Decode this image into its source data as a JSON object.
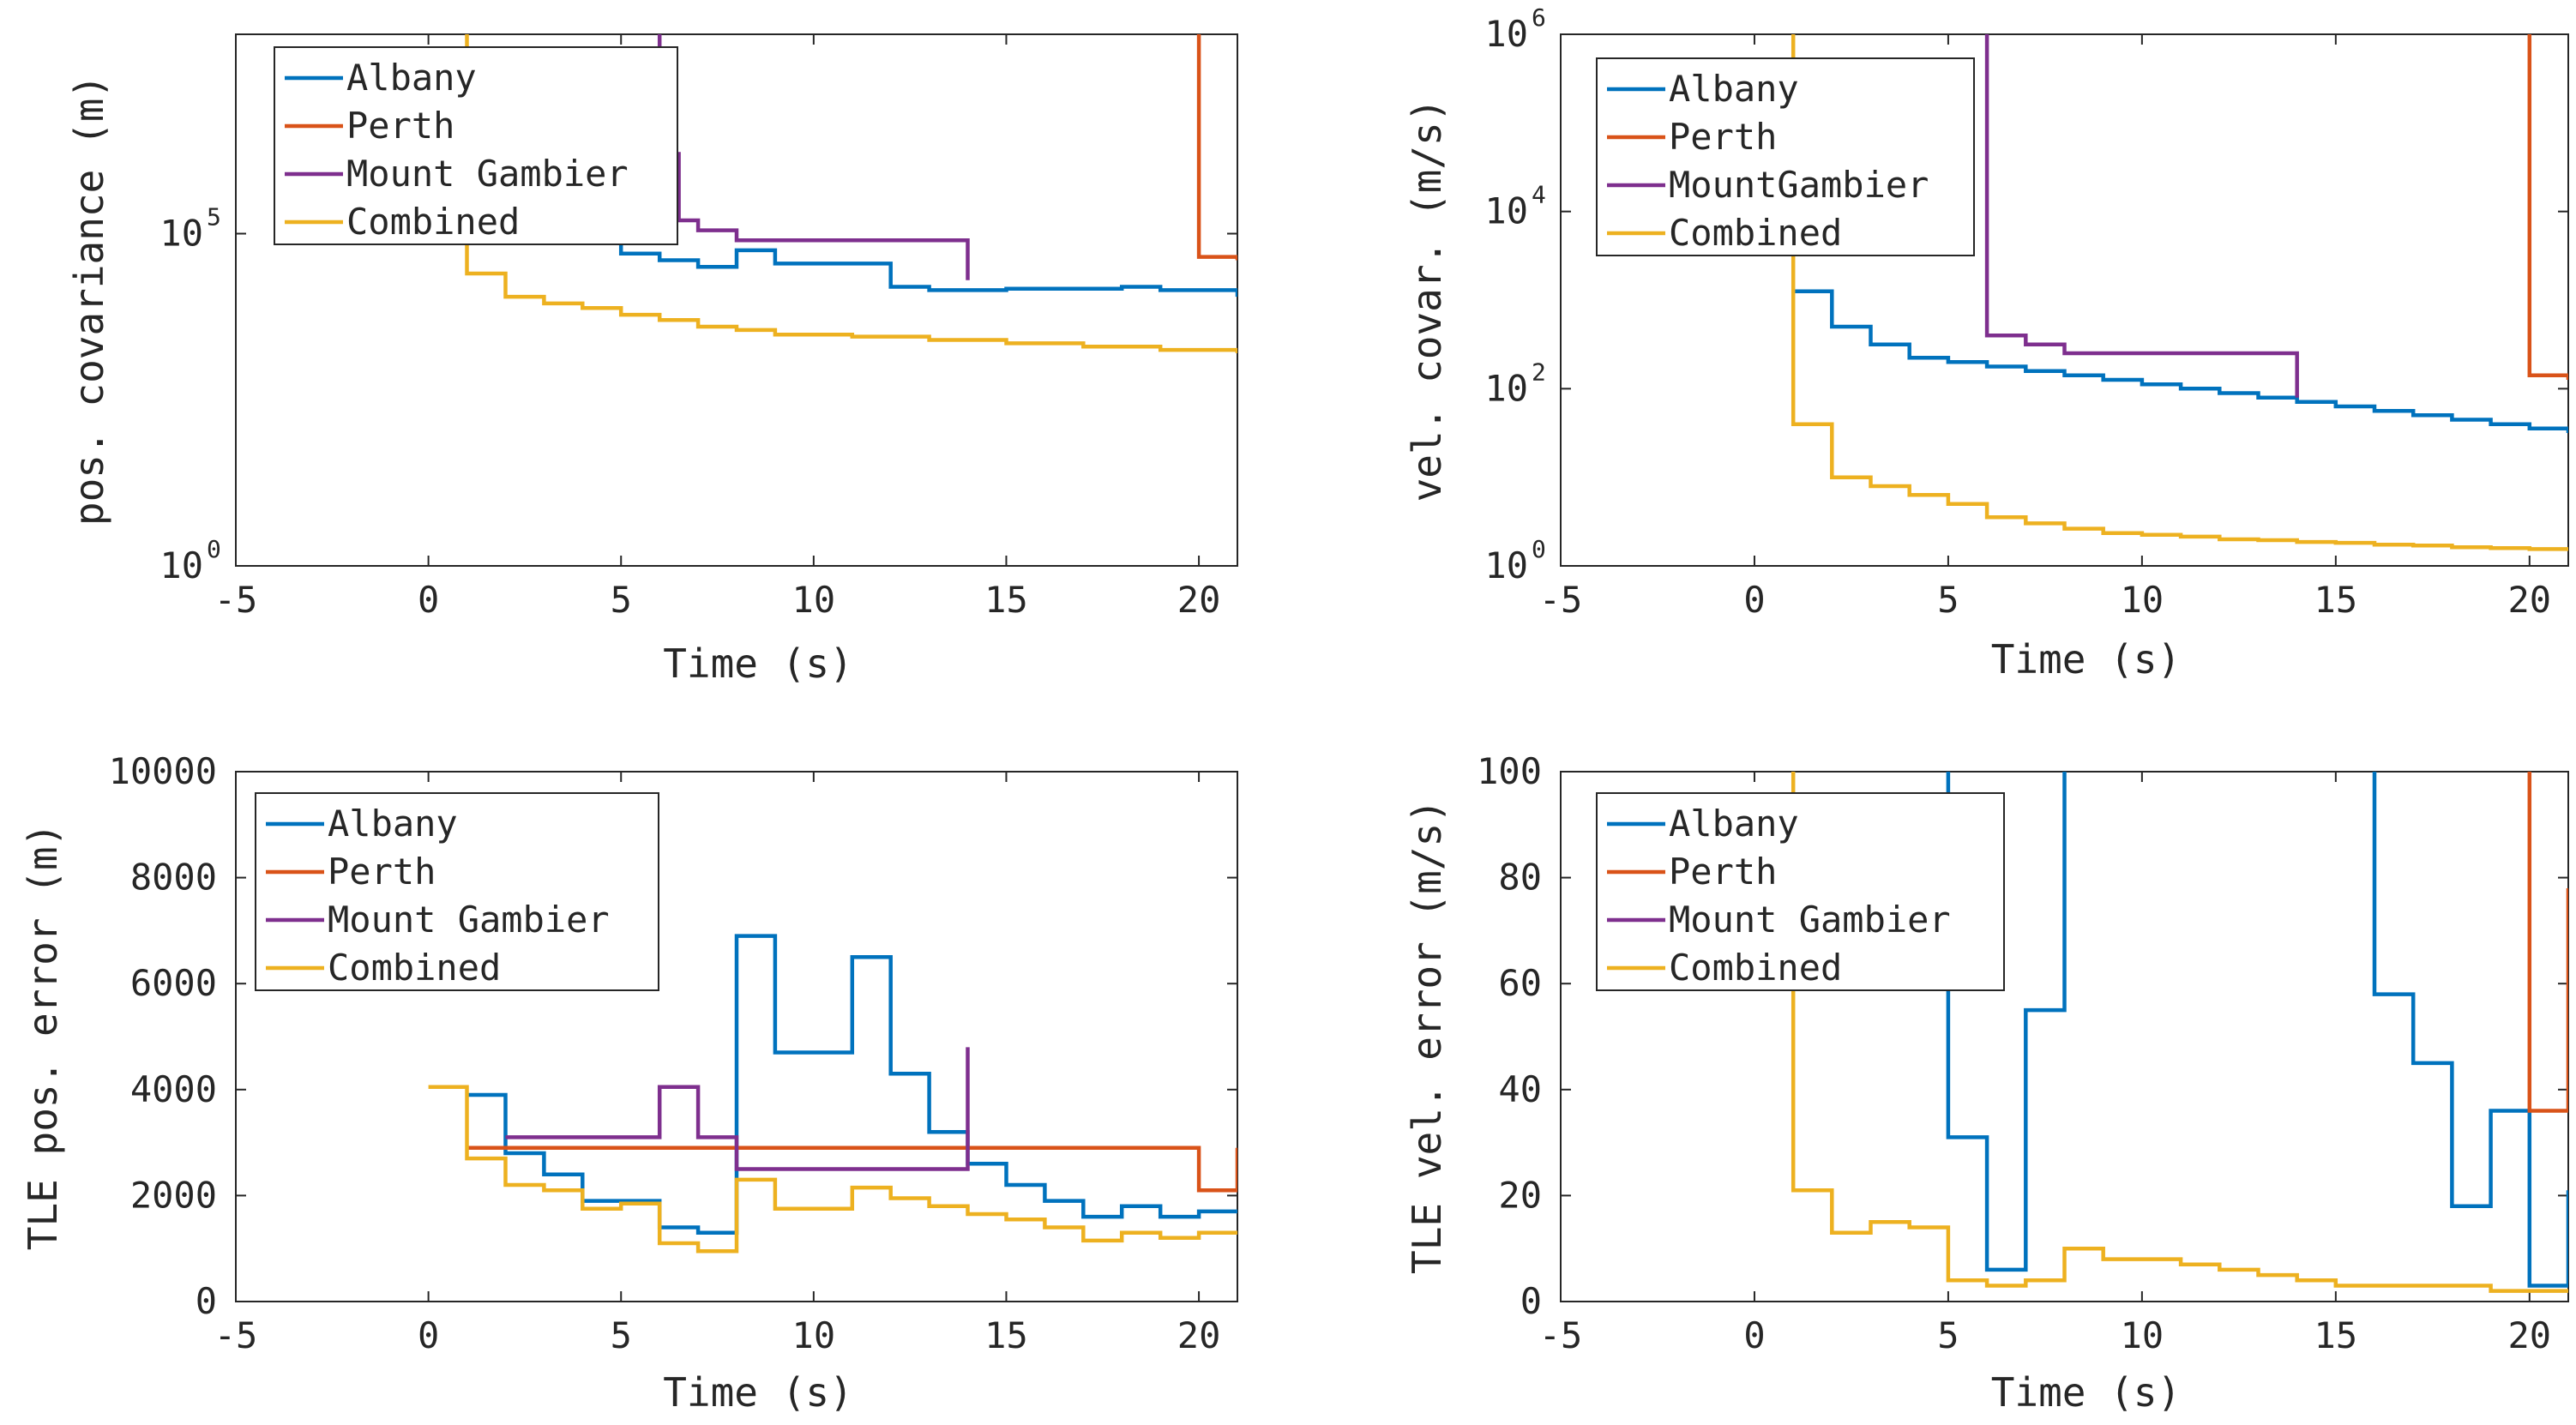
{
  "colors": {
    "albany": "#0072BD",
    "perth": "#D95319",
    "gambier": "#7E2F8E",
    "combined": "#EDB120"
  },
  "chart_data": [
    {
      "type": "line",
      "step": true,
      "yscale": "log",
      "xlabel": "Time (s)",
      "ylabel": "pos. covariance (m)",
      "xlim": [
        -5,
        21
      ],
      "ylim_log10": [
        0,
        8
      ],
      "xticks": [
        "-5",
        "0",
        "5",
        "10",
        "15",
        "20"
      ],
      "yticks": [
        {
          "base": "10",
          "exp": "0"
        },
        {
          "base": "10",
          "exp": "5"
        }
      ],
      "legend": [
        "Albany",
        "Perth",
        "Mount Gambier",
        "Combined"
      ],
      "series": [
        {
          "name": "Albany",
          "color": "albany",
          "points": [
            [
              5,
              6
            ],
            [
              5,
              4.7
            ],
            [
              6,
              4.6
            ],
            [
              7,
              4.5
            ],
            [
              8,
              4.75
            ],
            [
              9,
              4.55
            ],
            [
              11,
              4.55
            ],
            [
              12,
              4.2
            ],
            [
              13,
              4.15
            ],
            [
              15,
              4.17
            ],
            [
              18,
              4.2
            ],
            [
              19,
              4.15
            ],
            [
              21,
              4.05
            ]
          ]
        },
        {
          "name": "Perth",
          "color": "perth",
          "points": [
            [
              20,
              8
            ],
            [
              20,
              4.65
            ],
            [
              21,
              4.6
            ]
          ]
        },
        {
          "name": "Mount Gambier",
          "color": "gambier",
          "points": [
            [
              6,
              8
            ],
            [
              6,
              6.2
            ],
            [
              6.5,
              5.2
            ],
            [
              7,
              5.05
            ],
            [
              8,
              4.9
            ],
            [
              14,
              4.9
            ],
            [
              14,
              4.3
            ]
          ]
        },
        {
          "name": "Combined",
          "color": "combined",
          "points": [
            [
              1,
              8
            ],
            [
              1,
              4.4
            ],
            [
              2,
              4.05
            ],
            [
              3,
              3.95
            ],
            [
              4,
              3.88
            ],
            [
              5,
              3.78
            ],
            [
              6,
              3.7
            ],
            [
              7,
              3.6
            ],
            [
              8,
              3.55
            ],
            [
              9,
              3.48
            ],
            [
              11,
              3.45
            ],
            [
              13,
              3.4
            ],
            [
              15,
              3.35
            ],
            [
              17,
              3.3
            ],
            [
              19,
              3.25
            ],
            [
              21,
              3.2
            ]
          ]
        }
      ]
    },
    {
      "type": "line",
      "step": true,
      "yscale": "log",
      "xlabel": "Time (s)",
      "ylabel": "vel. covar. (m/s)",
      "xlim": [
        -5,
        21
      ],
      "ylim_log10": [
        0,
        6
      ],
      "xticks": [
        "-5",
        "0",
        "5",
        "10",
        "15",
        "20"
      ],
      "yticks": [
        {
          "base": "10",
          "exp": "0"
        },
        {
          "base": "10",
          "exp": "2"
        },
        {
          "base": "10",
          "exp": "4"
        },
        {
          "base": "10",
          "exp": "6"
        }
      ],
      "legend": [
        "Albany",
        "Perth",
        "MountGambier",
        "Combined"
      ],
      "series": [
        {
          "name": "Albany",
          "color": "albany",
          "points": [
            [
              1,
              3.1
            ],
            [
              2,
              2.7
            ],
            [
              3,
              2.5
            ],
            [
              4,
              2.35
            ],
            [
              5,
              2.3
            ],
            [
              6,
              2.25
            ],
            [
              7,
              2.2
            ],
            [
              8,
              2.15
            ],
            [
              9,
              2.1
            ],
            [
              10,
              2.05
            ],
            [
              11,
              2.0
            ],
            [
              12,
              1.95
            ],
            [
              13,
              1.9
            ],
            [
              14,
              1.85
            ],
            [
              15,
              1.8
            ],
            [
              16,
              1.75
            ],
            [
              17,
              1.7
            ],
            [
              18,
              1.65
            ],
            [
              19,
              1.6
            ],
            [
              20,
              1.55
            ],
            [
              21,
              1.5
            ]
          ]
        },
        {
          "name": "Perth",
          "color": "perth",
          "points": [
            [
              20,
              6
            ],
            [
              20,
              2.15
            ],
            [
              21,
              2.1
            ]
          ]
        },
        {
          "name": "MountGambier",
          "color": "gambier",
          "points": [
            [
              6,
              6
            ],
            [
              6,
              2.6
            ],
            [
              7,
              2.5
            ],
            [
              8,
              2.4
            ],
            [
              14,
              2.4
            ],
            [
              14,
              1.9
            ]
          ]
        },
        {
          "name": "Combined",
          "color": "combined",
          "points": [
            [
              1,
              6
            ],
            [
              1,
              1.6
            ],
            [
              2,
              1.0
            ],
            [
              3,
              0.9
            ],
            [
              4,
              0.8
            ],
            [
              5,
              0.7
            ],
            [
              6,
              0.55
            ],
            [
              7,
              0.48
            ],
            [
              8,
              0.42
            ],
            [
              9,
              0.37
            ],
            [
              10,
              0.35
            ],
            [
              11,
              0.33
            ],
            [
              12,
              0.3
            ],
            [
              13,
              0.29
            ],
            [
              14,
              0.27
            ],
            [
              15,
              0.26
            ],
            [
              16,
              0.24
            ],
            [
              17,
              0.23
            ],
            [
              18,
              0.21
            ],
            [
              19,
              0.2
            ],
            [
              20,
              0.19
            ],
            [
              21,
              0.18
            ]
          ]
        }
      ]
    },
    {
      "type": "line",
      "step": true,
      "yscale": "linear",
      "xlabel": "Time (s)",
      "ylabel": "TLE pos. error (m)",
      "xlim": [
        -5,
        21
      ],
      "ylim": [
        0,
        10000
      ],
      "xticks": [
        "-5",
        "0",
        "5",
        "10",
        "15",
        "20"
      ],
      "yticks": [
        "0",
        "2000",
        "4000",
        "6000",
        "8000",
        "10000"
      ],
      "legend": [
        "Albany",
        "Perth",
        "Mount Gambier",
        "Combined"
      ],
      "series": [
        {
          "name": "Albany",
          "color": "albany",
          "points": [
            [
              1,
              3900
            ],
            [
              2,
              2800
            ],
            [
              3,
              2400
            ],
            [
              4,
              1900
            ],
            [
              6,
              1400
            ],
            [
              7,
              1300
            ],
            [
              8,
              6900
            ],
            [
              9,
              4700
            ],
            [
              11,
              6500
            ],
            [
              12,
              4300
            ],
            [
              13,
              3200
            ],
            [
              14,
              2600
            ],
            [
              15,
              2200
            ],
            [
              16,
              1900
            ],
            [
              17,
              1600
            ],
            [
              18,
              1800
            ],
            [
              19,
              1600
            ],
            [
              20,
              1700
            ],
            [
              21,
              1700
            ]
          ]
        },
        {
          "name": "Perth",
          "color": "perth",
          "points": [
            [
              1,
              2900
            ],
            [
              20,
              2900
            ],
            [
              20,
              2100
            ],
            [
              21,
              2100
            ],
            [
              21,
              2900
            ]
          ]
        },
        {
          "name": "Mount Gambier",
          "color": "gambier",
          "points": [
            [
              2,
              3100
            ],
            [
              6,
              4050
            ],
            [
              7,
              3100
            ],
            [
              8,
              2500
            ],
            [
              14,
              2500
            ],
            [
              14,
              4800
            ]
          ]
        },
        {
          "name": "Combined",
          "color": "combined",
          "points": [
            [
              0,
              4050
            ],
            [
              1,
              2700
            ],
            [
              2,
              2200
            ],
            [
              3,
              2100
            ],
            [
              4,
              1750
            ],
            [
              5,
              1850
            ],
            [
              6,
              1100
            ],
            [
              7,
              950
            ],
            [
              8,
              2300
            ],
            [
              9,
              1750
            ],
            [
              11,
              2150
            ],
            [
              12,
              1950
            ],
            [
              13,
              1800
            ],
            [
              14,
              1650
            ],
            [
              15,
              1550
            ],
            [
              16,
              1400
            ],
            [
              17,
              1150
            ],
            [
              18,
              1300
            ],
            [
              19,
              1200
            ],
            [
              20,
              1300
            ],
            [
              21,
              1300
            ]
          ]
        }
      ]
    },
    {
      "type": "line",
      "step": true,
      "yscale": "linear",
      "xlabel": "Time (s)",
      "ylabel": "TLE vel. error (m/s)",
      "xlim": [
        -5,
        21
      ],
      "ylim": [
        0,
        100
      ],
      "xticks": [
        "-5",
        "0",
        "5",
        "10",
        "15",
        "20"
      ],
      "yticks": [
        "0",
        "20",
        "40",
        "60",
        "80",
        "100"
      ],
      "legend": [
        "Albany",
        "Perth",
        "Mount Gambier",
        "Combined"
      ],
      "series": [
        {
          "name": "Albany",
          "color": "albany",
          "points": [
            [
              5,
              100
            ],
            [
              5,
              31
            ],
            [
              6,
              6
            ],
            [
              7,
              55
            ],
            [
              8,
              100
            ]
          ]
        },
        {
          "name": "Albany",
          "color": "albany",
          "points": [
            [
              16,
              100
            ],
            [
              16,
              58
            ],
            [
              17,
              45
            ],
            [
              18,
              18
            ],
            [
              19,
              36
            ],
            [
              20,
              36
            ],
            [
              20,
              3
            ],
            [
              21,
              3
            ],
            [
              21,
              21
            ]
          ]
        },
        {
          "name": "Perth",
          "color": "perth",
          "points": [
            [
              20,
              100
            ],
            [
              20,
              36
            ],
            [
              21,
              36
            ],
            [
              21,
              78
            ]
          ]
        },
        {
          "name": "Combined",
          "color": "combined",
          "points": [
            [
              1,
              100
            ],
            [
              1,
              21
            ],
            [
              2,
              13
            ],
            [
              3,
              15
            ],
            [
              4,
              14
            ],
            [
              5,
              4
            ],
            [
              6,
              3
            ],
            [
              7,
              4
            ],
            [
              8,
              10
            ],
            [
              9,
              8
            ],
            [
              11,
              7
            ],
            [
              12,
              6
            ],
            [
              13,
              5
            ],
            [
              14,
              4
            ],
            [
              15,
              3
            ],
            [
              17,
              3
            ],
            [
              18,
              3
            ],
            [
              19,
              2
            ],
            [
              20,
              2
            ],
            [
              21,
              2
            ]
          ]
        }
      ]
    }
  ]
}
